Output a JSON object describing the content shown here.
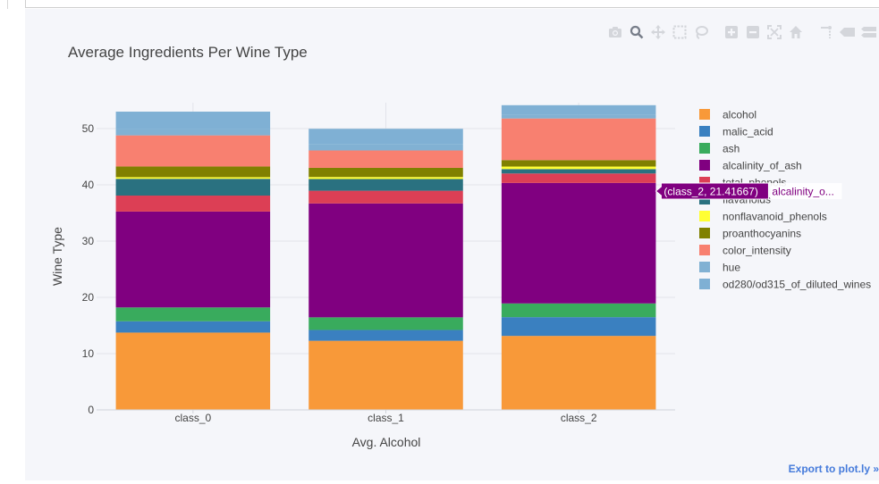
{
  "modebar": {
    "icons": [
      "camera-icon",
      "zoom-icon",
      "pan-icon",
      "box-select-icon",
      "lasso-icon",
      "zoom-in-icon",
      "zoom-out-icon",
      "autoscale-icon",
      "reset-axes-icon",
      "spike-lines-icon",
      "hover-closest-icon",
      "hover-compare-icon",
      "plotly-logo-icon"
    ]
  },
  "export_label": "Export to plot.ly »",
  "hover": {
    "value_text": "(class_2, 21.41667)",
    "series_text": "alcalinity_o...",
    "box_color": "#800080",
    "series_color": "#800080"
  },
  "chart_data": {
    "type": "bar",
    "barmode": "stack",
    "title": "Average Ingredients Per Wine Type",
    "xlabel": "Avg. Alcohol",
    "ylabel": "Wine Type",
    "categories": [
      "class_0",
      "class_1",
      "class_2"
    ],
    "ylim": [
      0,
      54.6
    ],
    "yticks": [
      0,
      10,
      20,
      30,
      40,
      50
    ],
    "grid": true,
    "legend_position": "right",
    "series": [
      {
        "name": "alcohol",
        "color": "#f89939",
        "values": [
          13.74,
          12.28,
          13.15
        ]
      },
      {
        "name": "malic_acid",
        "color": "#3a80c0",
        "values": [
          2.01,
          1.93,
          3.33
        ]
      },
      {
        "name": "ash",
        "color": "#39ab5d",
        "values": [
          2.46,
          2.24,
          2.44
        ]
      },
      {
        "name": "alcalinity_of_ash",
        "color": "#800080",
        "values": [
          17.04,
          20.24,
          21.41667
        ]
      },
      {
        "name": "total_phenols",
        "color": "#dc3f55",
        "values": [
          2.84,
          2.26,
          1.68
        ]
      },
      {
        "name": "flavanoids",
        "color": "#2a7180",
        "values": [
          2.98,
          2.08,
          0.78
        ]
      },
      {
        "name": "nonflavanoid_phenols",
        "color": "#ffff33",
        "values": [
          0.29,
          0.36,
          0.45
        ]
      },
      {
        "name": "proanthocyanins",
        "color": "#808000",
        "values": [
          1.9,
          1.63,
          1.15
        ]
      },
      {
        "name": "color_intensity",
        "color": "#f88070",
        "values": [
          5.53,
          3.09,
          7.4
        ]
      },
      {
        "name": "hue",
        "color": "#81b1d3",
        "values": [
          1.06,
          1.06,
          0.68
        ]
      },
      {
        "name": "od280/od315_of_diluted_wines",
        "color": "#7fb0d4",
        "values": [
          3.16,
          2.79,
          1.68
        ]
      }
    ],
    "hover_point": {
      "category": "class_2",
      "series": "alcalinity_of_ash",
      "value": 21.41667
    }
  }
}
